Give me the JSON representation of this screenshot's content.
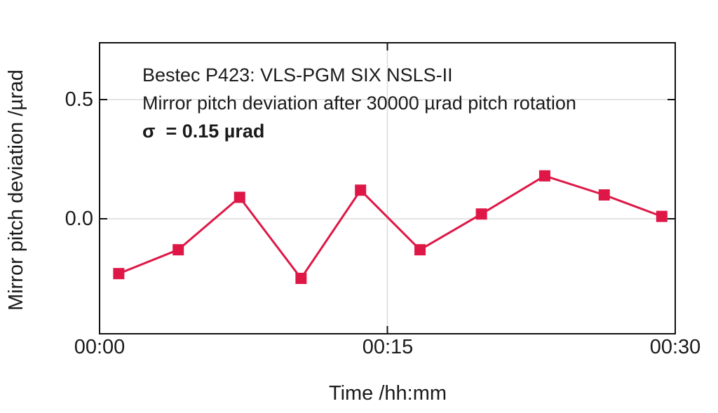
{
  "colors": {
    "series": "#de1746",
    "grid": "#dcdcdc",
    "frame": "#111111",
    "text": "#1a1a1a"
  },
  "chart_data": {
    "type": "line",
    "marker": "square",
    "title": "",
    "xlabel": "Time /hh:mm",
    "ylabel": "Mirror pitch deviation /µrad",
    "x_unit": "minutes",
    "xlim_minutes": [
      0,
      30
    ],
    "ylim": [
      -0.48,
      0.74
    ],
    "grid": true,
    "legend": false,
    "x_minutes": [
      1.0,
      4.1,
      7.3,
      10.5,
      13.6,
      16.7,
      19.9,
      23.2,
      26.3,
      29.3
    ],
    "values": [
      -0.23,
      -0.13,
      0.09,
      -0.25,
      0.12,
      -0.13,
      0.02,
      0.18,
      0.1,
      0.01
    ],
    "xticks": [
      {
        "value": 0,
        "label": "00:00"
      },
      {
        "value": 15,
        "label": "00:15"
      },
      {
        "value": 30,
        "label": "00:30"
      }
    ],
    "yticks": [
      {
        "value": 0.5,
        "label": "0.5"
      },
      {
        "value": 0.0,
        "label": "0.0"
      }
    ],
    "annotations": [
      {
        "text": "Bestec P423: VLS-PGM SIX NSLS-II",
        "bold": false
      },
      {
        "text": "Mirror pitch deviation after 30000 µrad pitch rotation",
        "bold": false
      },
      {
        "text": "σ  = 0.15 µrad",
        "bold": true
      }
    ]
  }
}
